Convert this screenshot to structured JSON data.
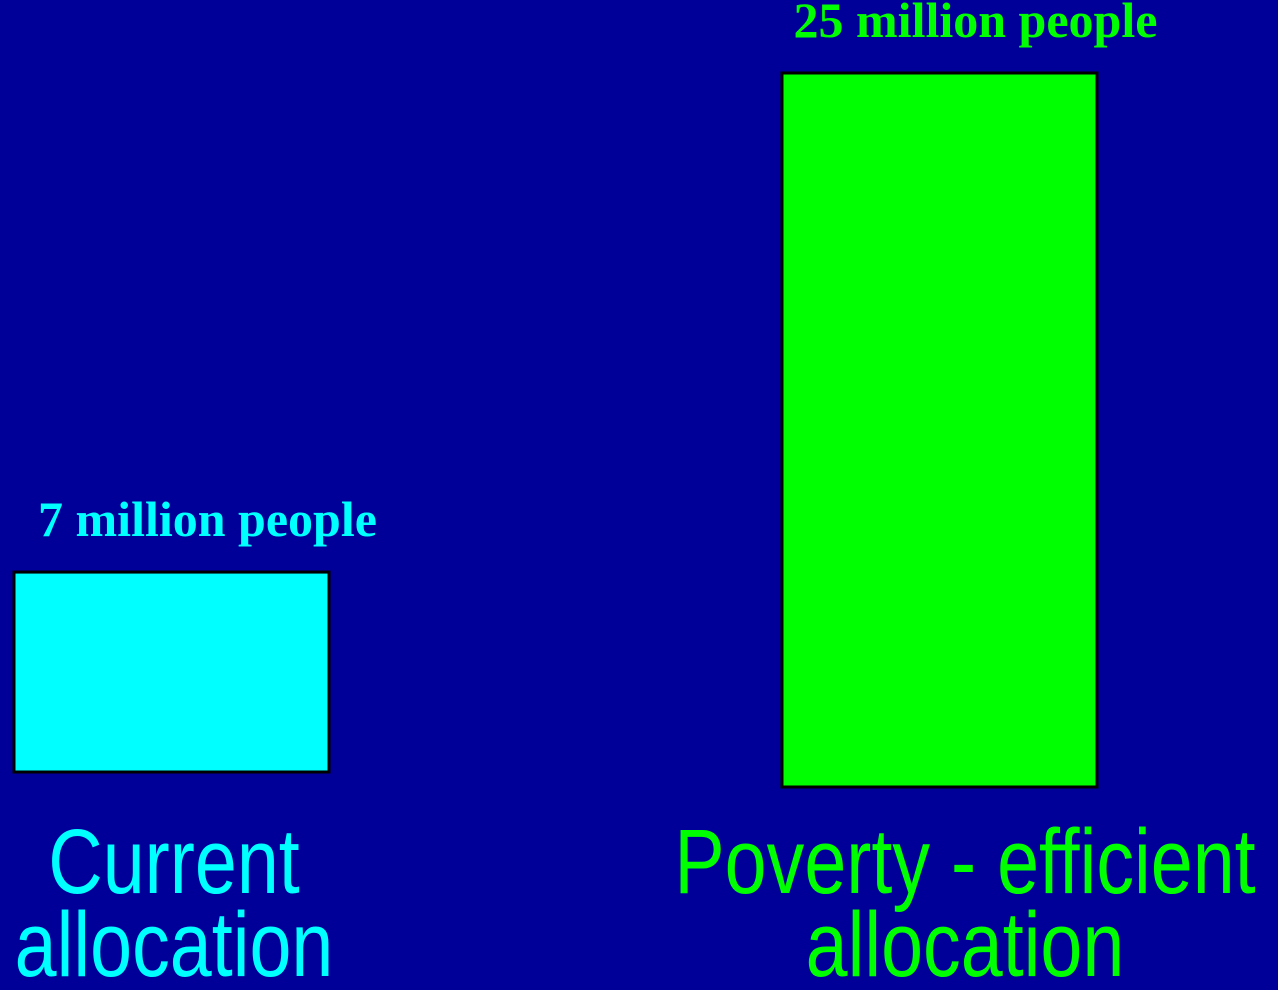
{
  "chart_data": {
    "type": "bar",
    "categories": [
      "Current allocation",
      "Poverty - efficient allocation"
    ],
    "category_lines": [
      [
        "Current",
        "allocation"
      ],
      [
        "Poverty - efficient",
        "allocation"
      ]
    ],
    "values": [
      7,
      25
    ],
    "unit": "million people",
    "data_labels": [
      "7 million people",
      "25 million people"
    ],
    "colors": [
      "#00FFFF",
      "#00FF00"
    ],
    "background": "#000099",
    "ylim": [
      0,
      25
    ],
    "grid": false,
    "legend": "none",
    "title": "",
    "xlabel": "",
    "ylabel": ""
  }
}
